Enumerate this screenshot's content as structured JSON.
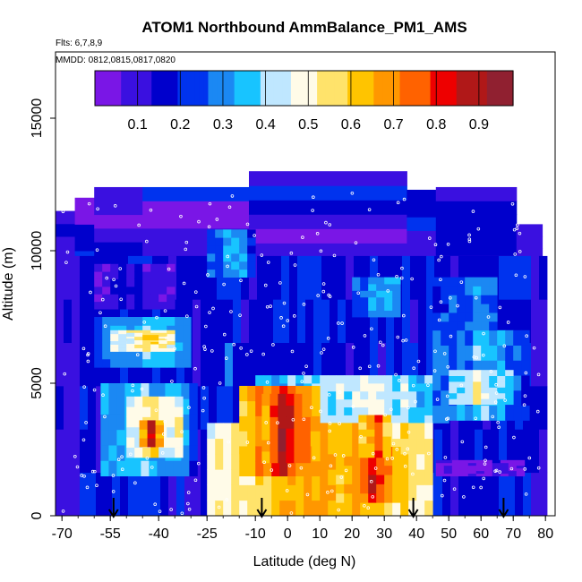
{
  "chart_data": {
    "type": "heatmap",
    "title": "ATOM1 Northbound AmmBalance_PM1_AMS",
    "flights_note": "Flts: 6,7,8,9",
    "dates_note": "MMDD: 0812,0815,0817,0820",
    "xlabel": "Latitude (deg N)",
    "ylabel": "Altitude (m)",
    "xlim": [
      -72,
      83
    ],
    "ylim": [
      0,
      17500
    ],
    "x_ticks": [
      -70,
      -55,
      -40,
      -25,
      -10,
      0,
      10,
      20,
      30,
      40,
      50,
      60,
      70,
      80
    ],
    "y_ticks": [
      0,
      5000,
      10000,
      15000
    ],
    "colorbar": {
      "range": [
        0,
        0.98
      ],
      "ticks": [
        0.1,
        0.2,
        0.3,
        0.4,
        0.5,
        0.6,
        0.7,
        0.8,
        0.9
      ],
      "colors": [
        "#7a16e6",
        "#3a10e0",
        "#0000cc",
        "#0033ee",
        "#1b88f3",
        "#18c4ff",
        "#bfe7ff",
        "#fffbe8",
        "#ffe36b",
        "#ffc400",
        "#ff9700",
        "#ff6200",
        "#ee0000",
        "#b01818",
        "#902030"
      ]
    },
    "flight_markers_lat": [
      -54,
      -8,
      39,
      67
    ],
    "columns": [
      {
        "x0": -72,
        "x1": -66,
        "top": 11500,
        "c": 0.1
      },
      {
        "x0": -66,
        "x1": -60,
        "top": 12000,
        "c": 0.12
      },
      {
        "x0": -60,
        "x1": -45,
        "top": 12400,
        "c": 0.13
      },
      {
        "x0": -45,
        "x1": -12,
        "top": 12400,
        "c": 0.1
      },
      {
        "x0": -12,
        "x1": 37,
        "top": 13000,
        "c": 0.12
      },
      {
        "x0": 37,
        "x1": 46,
        "top": 12300,
        "c": 0.12
      },
      {
        "x0": 46,
        "x1": 71,
        "top": 12400,
        "c": 0.12
      },
      {
        "x0": 71,
        "x1": 79,
        "top": 11000,
        "c": 0.12
      }
    ],
    "patches": [
      {
        "x0": -72,
        "x1": 79,
        "y0": 0,
        "y1": 9800,
        "c": 0.2
      },
      {
        "x0": -60,
        "x1": -30,
        "y0": 5600,
        "y1": 7500,
        "c": 0.35
      },
      {
        "x0": -55,
        "x1": -35,
        "y0": 6200,
        "y1": 7000,
        "c": 0.58
      },
      {
        "x0": -50,
        "x1": -38,
        "y0": 6500,
        "y1": 6900,
        "c": 0.62
      },
      {
        "x0": -58,
        "x1": -30,
        "y0": 1500,
        "y1": 5000,
        "c": 0.35
      },
      {
        "x0": -50,
        "x1": -33,
        "y0": 2200,
        "y1": 4500,
        "c": 0.55
      },
      {
        "x0": -46,
        "x1": -40,
        "y0": 2600,
        "y1": 3600,
        "c": 0.85
      },
      {
        "x0": -10,
        "x1": 48,
        "y0": 3500,
        "y1": 5300,
        "c": 0.45
      },
      {
        "x0": -25,
        "x1": 44,
        "y0": 0,
        "y1": 3500,
        "c": 0.68
      },
      {
        "x0": -15,
        "x1": 10,
        "y0": 1500,
        "y1": 4900,
        "c": 0.82
      },
      {
        "x0": -8,
        "x1": 5,
        "y0": 2000,
        "y1": 4600,
        "c": 0.9
      },
      {
        "x0": 15,
        "x1": 35,
        "y0": 500,
        "y1": 2600,
        "c": 0.82
      },
      {
        "x0": 22,
        "x1": 30,
        "y0": 2200,
        "y1": 3800,
        "c": 0.8
      },
      {
        "x0": 45,
        "x1": 75,
        "y0": 3600,
        "y1": 7000,
        "c": 0.33
      },
      {
        "x0": 50,
        "x1": 68,
        "y0": 4200,
        "y1": 5500,
        "c": 0.5
      },
      {
        "x0": 46,
        "x1": 72,
        "y0": 1500,
        "y1": 2100,
        "c": 0.08
      },
      {
        "x0": 20,
        "x1": 35,
        "y0": 7500,
        "y1": 9000,
        "c": 0.35
      },
      {
        "x0": 45,
        "x1": 65,
        "y0": 7000,
        "y1": 9000,
        "c": 0.3
      },
      {
        "x0": -60,
        "x1": -35,
        "y0": 7800,
        "y1": 9500,
        "c": 0.12
      },
      {
        "x0": -25,
        "x1": -10,
        "y0": 9000,
        "y1": 10800,
        "c": 0.3
      }
    ]
  }
}
